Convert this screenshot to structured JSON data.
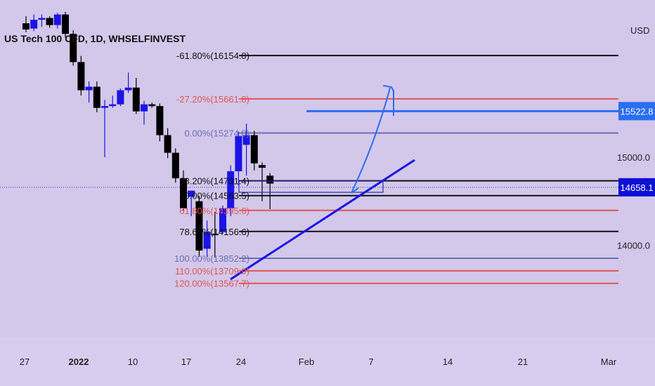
{
  "chart_data": {
    "type": "candlestick",
    "title": "US Tech 100 CFD, 1D, WHSELFINVEST",
    "currency": "USD",
    "x_ticks": [
      "27",
      "2022",
      "10",
      "17",
      "24",
      "Feb",
      "7",
      "14",
      "21",
      "Mar"
    ],
    "y_ticks": [
      "15000.0",
      "14000.0"
    ],
    "price_tags": [
      {
        "label": "15522.8",
        "value": 15522.8,
        "color": "#2a6ef2"
      },
      {
        "label": "14658.1",
        "value": 14658.1,
        "color": "#0f10d6"
      }
    ],
    "fib_levels": [
      {
        "label": "-61.80%(16154.0)",
        "value": 16154.0,
        "color": "#111111"
      },
      {
        "label": "-27.20%(15661.8)",
        "value": 15661.8,
        "color": "#e05555"
      },
      {
        "label": "0.00%(15274.8)",
        "value": 15274.8,
        "color": "#6d6db7"
      },
      {
        "label": "38.20%(14731.4)",
        "value": 14731.4,
        "color": "#111111"
      },
      {
        "label": "50.00%(14563.5)",
        "value": 14563.5,
        "color": "#111111"
      },
      {
        "label": "61.80%(14395.6)",
        "value": 14395.6,
        "color": "#e05555"
      },
      {
        "label": "78.60%(14156.6)",
        "value": 14156.6,
        "color": "#111111"
      },
      {
        "label": "100.00%(13852.2)",
        "value": 13852.2,
        "color": "#6d6db7"
      },
      {
        "label": "110.00%(13709.9)",
        "value": 13709.9,
        "color": "#e05555"
      },
      {
        "label": "120.00%(13567.7)",
        "value": 13567.7,
        "color": "#e05555"
      }
    ],
    "candles": [
      {
        "o": 16520,
        "h": 16600,
        "l": 16420,
        "c": 16450
      },
      {
        "o": 16460,
        "h": 16620,
        "l": 16430,
        "c": 16560
      },
      {
        "o": 16560,
        "h": 16620,
        "l": 16480,
        "c": 16580
      },
      {
        "o": 16580,
        "h": 16600,
        "l": 16470,
        "c": 16500
      },
      {
        "o": 16500,
        "h": 16640,
        "l": 16460,
        "c": 16620
      },
      {
        "o": 16620,
        "h": 16650,
        "l": 16360,
        "c": 16400
      },
      {
        "o": 16400,
        "h": 16440,
        "l": 16040,
        "c": 16080
      },
      {
        "o": 16080,
        "h": 16150,
        "l": 15700,
        "c": 15760
      },
      {
        "o": 15760,
        "h": 15860,
        "l": 15620,
        "c": 15800
      },
      {
        "o": 15800,
        "h": 15860,
        "l": 15510,
        "c": 15560
      },
      {
        "o": 15560,
        "h": 15650,
        "l": 15000,
        "c": 15580
      },
      {
        "o": 15580,
        "h": 15700,
        "l": 15560,
        "c": 15600
      },
      {
        "o": 15600,
        "h": 15780,
        "l": 15580,
        "c": 15760
      },
      {
        "o": 15760,
        "h": 15960,
        "l": 15730,
        "c": 15790
      },
      {
        "o": 15790,
        "h": 15900,
        "l": 15490,
        "c": 15520
      },
      {
        "o": 15520,
        "h": 15640,
        "l": 15370,
        "c": 15600
      },
      {
        "o": 15600,
        "h": 15620,
        "l": 15560,
        "c": 15580
      },
      {
        "o": 15580,
        "h": 15610,
        "l": 15180,
        "c": 15250
      },
      {
        "o": 15250,
        "h": 15330,
        "l": 14990,
        "c": 15050
      },
      {
        "o": 15050,
        "h": 15100,
        "l": 14710,
        "c": 14760
      },
      {
        "o": 14760,
        "h": 14850,
        "l": 14390,
        "c": 14420
      },
      {
        "o": 14550,
        "h": 14600,
        "l": 14330,
        "c": 14620
      },
      {
        "o": 14500,
        "h": 14560,
        "l": 13870,
        "c": 13940
      },
      {
        "o": 13960,
        "h": 14280,
        "l": 13870,
        "c": 14150
      },
      {
        "o": 14130,
        "h": 14380,
        "l": 13860,
        "c": 14120
      },
      {
        "o": 14150,
        "h": 14450,
        "l": 14140,
        "c": 14420
      },
      {
        "o": 14420,
        "h": 14910,
        "l": 14330,
        "c": 14840
      },
      {
        "o": 14840,
        "h": 15290,
        "l": 14680,
        "c": 15240
      },
      {
        "o": 15140,
        "h": 15380,
        "l": 14790,
        "c": 15250
      },
      {
        "o": 15250,
        "h": 15300,
        "l": 14850,
        "c": 14930
      },
      {
        "o": 14910,
        "h": 14940,
        "l": 14500,
        "c": 14880
      },
      {
        "o": 14790,
        "h": 14820,
        "l": 14410,
        "c": 14700
      }
    ]
  }
}
